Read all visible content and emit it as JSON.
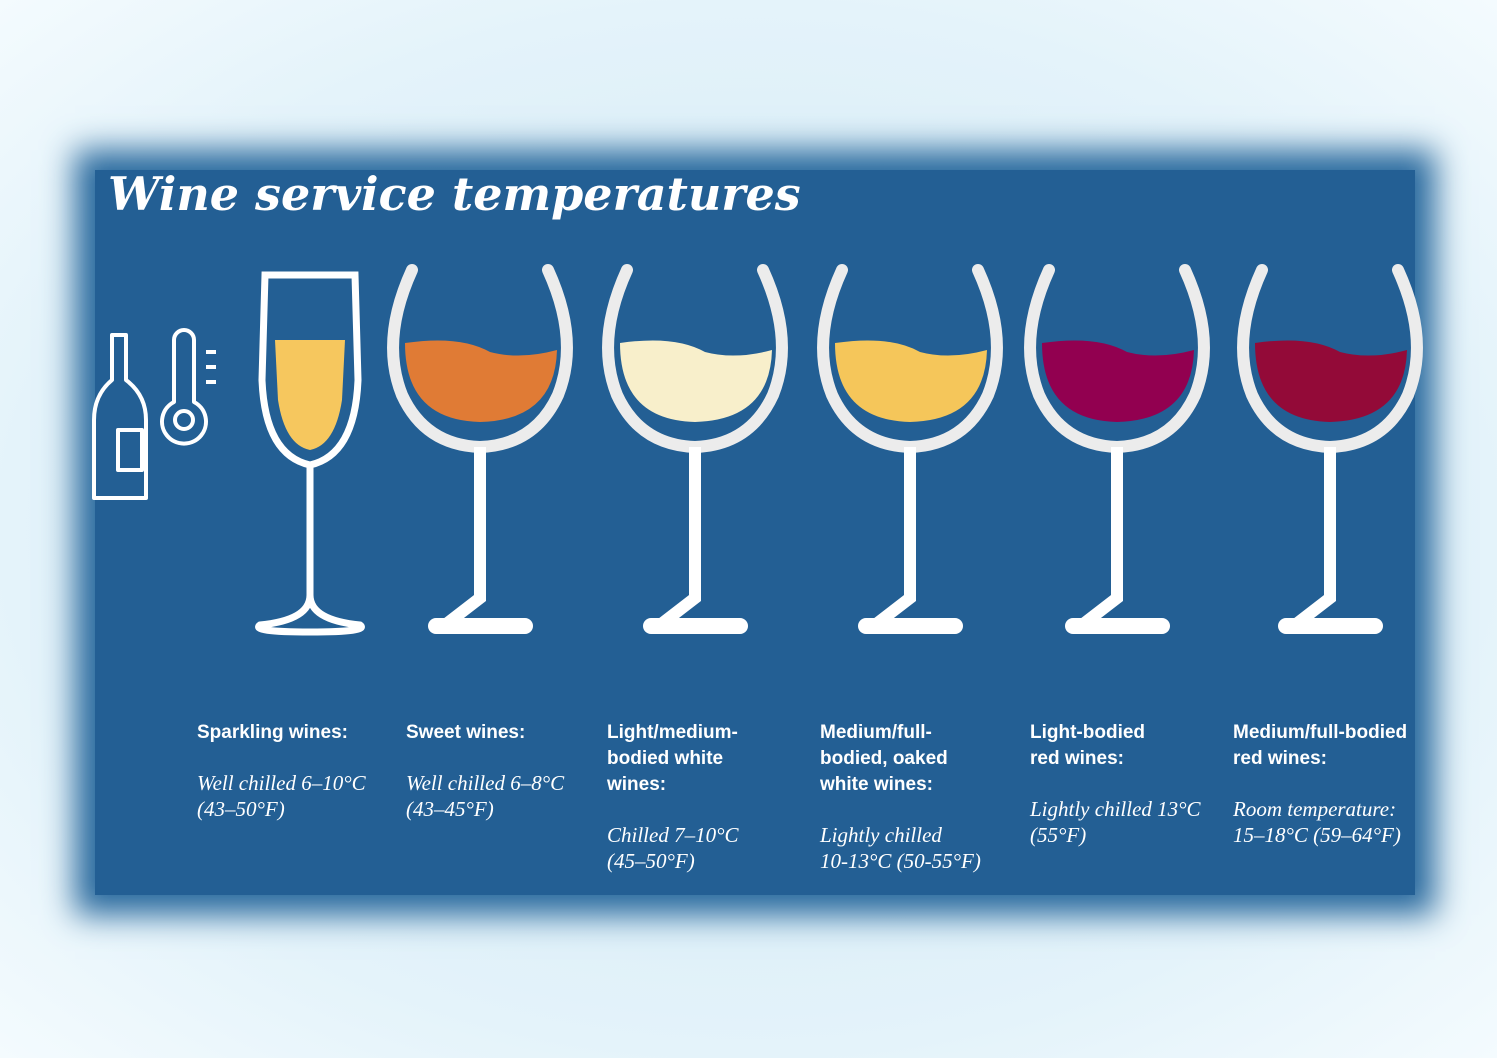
{
  "title": "Wine service temperatures",
  "wines": [
    {
      "label": [
        "Sparkling wines:"
      ],
      "temperature": [
        "Well chilled 6–10°C",
        "(43–50°F)"
      ],
      "color": "#f6c75e",
      "glass": "flute"
    },
    {
      "label": [
        "Sweet wines:"
      ],
      "temperature": [
        "Well chilled 6–8°C",
        "(43–45°F)"
      ],
      "color": "#e07b35",
      "glass": "bowl"
    },
    {
      "label": [
        "Light/medium-",
        "bodied white",
        "wines:"
      ],
      "temperature": [
        "Chilled 7–10°C",
        "(45–50°F)"
      ],
      "color": "#f8efcb",
      "glass": "bowl"
    },
    {
      "label": [
        "Medium/full-",
        "bodied, oaked",
        "white wines:"
      ],
      "temperature": [
        "Lightly chilled",
        "10-13°C (50-55°F)"
      ],
      "color": "#f5c65a",
      "glass": "bowl"
    },
    {
      "label": [
        "Light-bodied",
        "red wines:"
      ],
      "temperature": [
        "Lightly chilled 13°C",
        "(55°F)"
      ],
      "color": "#920050",
      "glass": "bowl"
    },
    {
      "label": [
        "Medium/full-bodied",
        "red wines:"
      ],
      "temperature": [
        "Room temperature:",
        "15–18°C (59–64°F)"
      ],
      "color": "#930a38",
      "glass": "bowl"
    }
  ]
}
